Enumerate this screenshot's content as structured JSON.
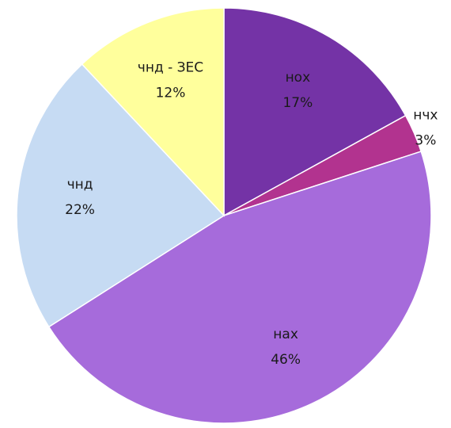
{
  "chart_data": {
    "type": "pie",
    "categories": [
      "нох",
      "нчх",
      "нах",
      "чнд",
      "чнд - ЗЕС"
    ],
    "values": [
      17,
      3,
      46,
      22,
      12
    ],
    "value_labels": [
      "17%",
      "3%",
      "46%",
      "22%",
      "12%"
    ],
    "colors": [
      "#7433a6",
      "#b2338f",
      "#a66bdb",
      "#c6dbf3",
      "#ffff9c"
    ]
  }
}
